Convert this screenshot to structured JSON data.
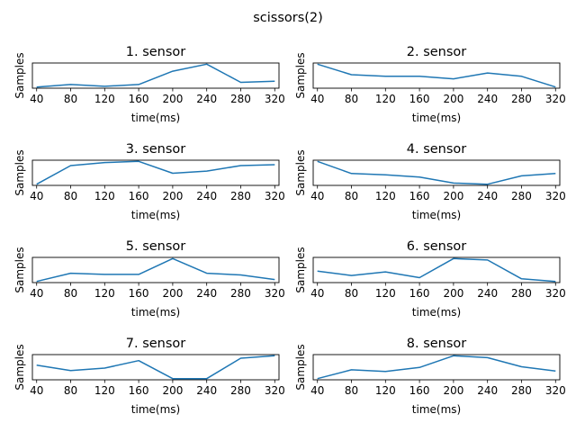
{
  "figure": {
    "suptitle": "scissors(2)",
    "line_color": "#1f77b4"
  },
  "chart_data": [
    {
      "type": "line",
      "title": "1. sensor",
      "xlabel": "time(ms)",
      "ylabel": "Samples",
      "x": [
        40,
        80,
        120,
        160,
        200,
        240,
        280,
        320
      ],
      "y": [
        0.02,
        0.13,
        0.05,
        0.13,
        0.7,
        1.0,
        0.22,
        0.27
      ]
    },
    {
      "type": "line",
      "title": "2. sensor",
      "xlabel": "time(ms)",
      "ylabel": "Samples",
      "x": [
        40,
        80,
        120,
        160,
        200,
        240,
        280,
        320
      ],
      "y": [
        1.0,
        0.55,
        0.48,
        0.48,
        0.37,
        0.62,
        0.48,
        0.02
      ]
    },
    {
      "type": "line",
      "title": "3. sensor",
      "xlabel": "time(ms)",
      "ylabel": "Samples",
      "x": [
        40,
        80,
        120,
        160,
        200,
        240,
        280,
        320
      ],
      "y": [
        0.02,
        0.8,
        0.93,
        0.98,
        0.48,
        0.57,
        0.8,
        0.84
      ]
    },
    {
      "type": "line",
      "title": "4. sensor",
      "xlabel": "time(ms)",
      "ylabel": "Samples",
      "x": [
        40,
        80,
        120,
        160,
        200,
        240,
        280,
        320
      ],
      "y": [
        1.0,
        0.48,
        0.42,
        0.33,
        0.07,
        0.02,
        0.38,
        0.48
      ]
    },
    {
      "type": "line",
      "title": "5. sensor",
      "xlabel": "time(ms)",
      "ylabel": "Samples",
      "x": [
        40,
        80,
        120,
        160,
        200,
        240,
        280,
        320
      ],
      "y": [
        0.02,
        0.37,
        0.32,
        0.32,
        1.0,
        0.37,
        0.3,
        0.1
      ]
    },
    {
      "type": "line",
      "title": "6. sensor",
      "xlabel": "time(ms)",
      "ylabel": "Samples",
      "x": [
        40,
        80,
        120,
        160,
        200,
        240,
        280,
        320
      ],
      "y": [
        0.45,
        0.27,
        0.42,
        0.18,
        0.98,
        0.92,
        0.13,
        0.02
      ]
    },
    {
      "type": "line",
      "title": "7. sensor",
      "xlabel": "time(ms)",
      "ylabel": "Samples",
      "x": [
        40,
        80,
        120,
        160,
        200,
        240,
        280,
        320
      ],
      "y": [
        0.6,
        0.38,
        0.48,
        0.78,
        0.05,
        0.05,
        0.88,
        0.98
      ]
    },
    {
      "type": "line",
      "title": "8. sensor",
      "xlabel": "time(ms)",
      "ylabel": "Samples",
      "x": [
        40,
        80,
        120,
        160,
        200,
        240,
        280,
        320
      ],
      "y": [
        0.02,
        0.4,
        0.33,
        0.5,
        1.0,
        0.92,
        0.53,
        0.35
      ]
    }
  ]
}
